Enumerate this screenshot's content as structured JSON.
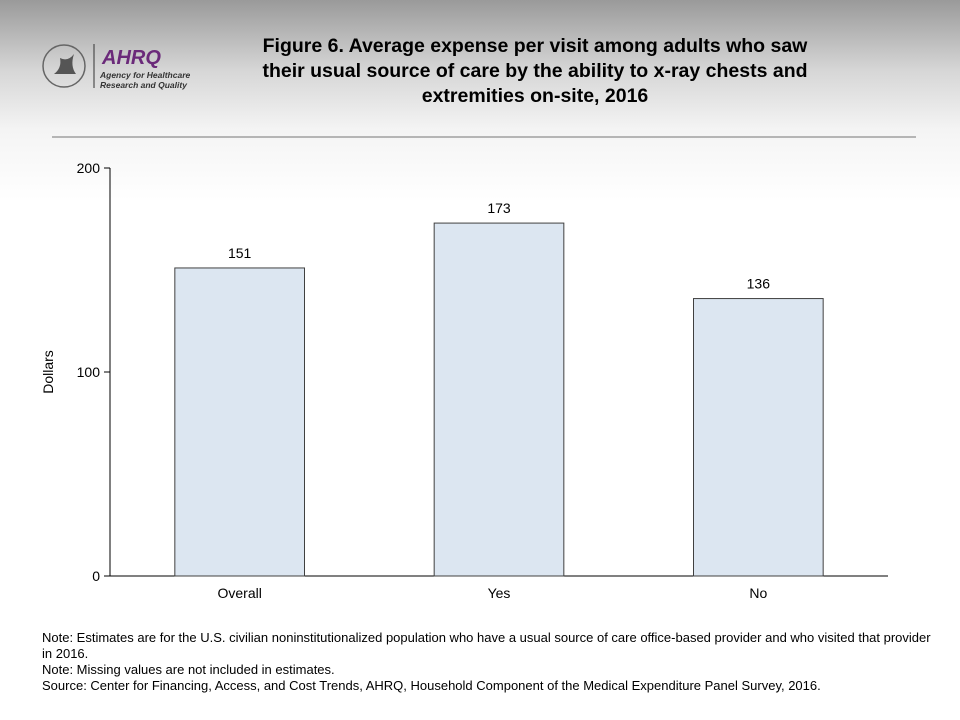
{
  "logo": {
    "name": "AHRQ",
    "line1": "Agency for Healthcare",
    "line2": "Research and Quality"
  },
  "chart_data": {
    "type": "bar",
    "title": "Figure 6. Average expense per visit among adults who saw their usual source of care by the ability to x-ray chests and extremities on-site, 2016",
    "ylabel": "Dollars",
    "categories": [
      "Overall",
      "Yes",
      "No"
    ],
    "values": [
      151,
      173,
      136
    ],
    "color": "#dce6f1",
    "edge_color": "#404040",
    "ylim": [
      0,
      200
    ],
    "yticks": [
      0,
      100,
      200
    ],
    "grid": false,
    "notes": [
      "Note: Estimates are for the U.S. civilian noninstitutionalized population who have a usual source of care office-based provider and who visited that provider in 2016.",
      "Note: Missing values are not included in estimates.",
      "Source: Center for Financing, Access, and Cost Trends, AHRQ, Household Component of the Medical Expenditure Panel Survey, 2016."
    ]
  }
}
